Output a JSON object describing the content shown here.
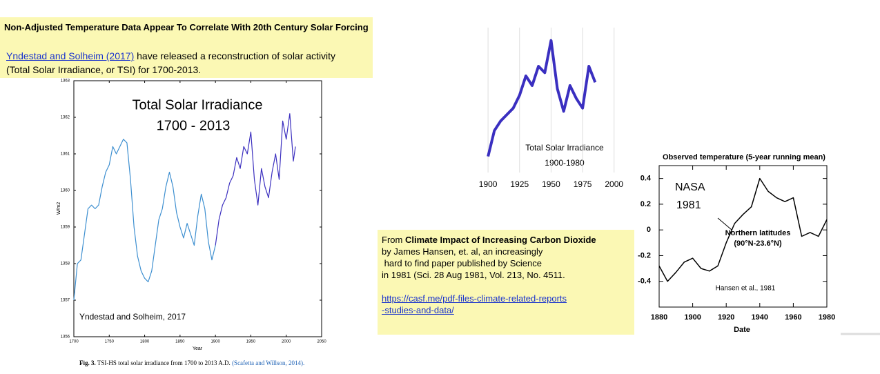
{
  "header": {
    "title": "Non-Adjusted  Temperature Data Appear To Correlate With 20th Century Solar Forcing",
    "link": "Yndestad and Solheim (2017)",
    "text": "have released a reconstruction of solar activity",
    "text2": "(Total Solar Irradiance, or TSI) for 1700-2013."
  },
  "note": {
    "prefix": "From",
    "title": "Climate Impact of Increasing Carbon Dioxide",
    "lines": [
      "by James Hansen, et. al, an increasingly",
      "hard to find paper published by Science",
      "in 1981 (Sci. 28 Aug 1981, Vol. 213, No. 4511."
    ],
    "link_lines": [
      "https://casf.me/pdf-files-climate-related-reports",
      "-studies-and-data/"
    ]
  },
  "chart_data": [
    {
      "type": "line",
      "title": "Total Solar Irradiance",
      "subtitle": "1700 - 2013",
      "annotation": "Yndestad and Solheim, 2017",
      "caption_label": "Fig. 3.",
      "caption": "TSI-HS total solar irradiance from 1700 to 2013 A.D.",
      "caption_source": "(Scafetta and Willson, 2014).",
      "x_label": "Year",
      "y_label": "W/m2",
      "x": [
        1700,
        1705,
        1710,
        1715,
        1720,
        1725,
        1730,
        1735,
        1740,
        1745,
        1750,
        1755,
        1760,
        1765,
        1770,
        1775,
        1780,
        1785,
        1790,
        1795,
        1800,
        1805,
        1810,
        1815,
        1820,
        1825,
        1830,
        1835,
        1840,
        1845,
        1850,
        1855,
        1860,
        1865,
        1870,
        1875,
        1880,
        1885,
        1890,
        1895,
        1900,
        1905,
        1910,
        1915,
        1920,
        1925,
        1930,
        1935,
        1940,
        1945,
        1950,
        1955,
        1960,
        1965,
        1970,
        1975,
        1980,
        1985,
        1990,
        1995,
        2000,
        2005,
        2010,
        2013
      ],
      "series": [
        {
          "color": "#3d8fd0",
          "values": [
            1357.0,
            1358.0,
            1358.1,
            1358.8,
            1359.5,
            1359.6,
            1359.5,
            1359.6,
            1360.1,
            1360.5,
            1360.7,
            1361.2,
            1361.0,
            1361.2,
            1361.4,
            1361.3,
            1360.3,
            1359.0,
            1358.2,
            1357.8,
            1357.6,
            1357.5,
            1357.8,
            1358.5,
            1359.2,
            1359.5,
            1360.1,
            1360.5,
            1360.1,
            1359.4,
            1359.0,
            1358.7,
            1359.1,
            1358.8,
            1358.5,
            1359.3,
            1359.9,
            1359.5,
            1358.6,
            1358.1,
            1358.5,
            null,
            null,
            null,
            null,
            null,
            null,
            null,
            null,
            null,
            null,
            null,
            null,
            null,
            null,
            null,
            null,
            null,
            null,
            null,
            null,
            null,
            null,
            null
          ]
        },
        {
          "color": "#3b2fbf",
          "values": [
            null,
            null,
            null,
            null,
            null,
            null,
            null,
            null,
            null,
            null,
            null,
            null,
            null,
            null,
            null,
            null,
            null,
            null,
            null,
            null,
            null,
            null,
            null,
            null,
            null,
            null,
            null,
            null,
            null,
            null,
            null,
            null,
            null,
            null,
            null,
            null,
            null,
            null,
            null,
            null,
            1358.5,
            1359.2,
            1359.6,
            1359.8,
            1360.2,
            1360.4,
            1360.9,
            1360.6,
            1361.2,
            1361.0,
            1361.6,
            1360.3,
            1359.6,
            1360.6,
            1360.1,
            1359.8,
            1360.5,
            1361.0,
            1360.3,
            1361.9,
            1361.4,
            1362.1,
            1360.8,
            1361.2
          ]
        }
      ],
      "xlim": [
        1700,
        2050
      ],
      "xticks": [
        1700,
        1750,
        1800,
        1850,
        1900,
        1950,
        2000,
        2050
      ],
      "ylim": [
        1356,
        1363
      ],
      "yticks": [
        1356,
        1357,
        1358,
        1359,
        1360,
        1361,
        1362,
        1363
      ]
    },
    {
      "type": "line",
      "title": "Total Solar Irradiance",
      "subtitle": "1900-1980",
      "x": [
        1900,
        1905,
        1910,
        1915,
        1920,
        1925,
        1930,
        1935,
        1940,
        1945,
        1950,
        1955,
        1960,
        1965,
        1970,
        1975,
        1980,
        1985
      ],
      "series": [
        {
          "color": "#3a2fc0",
          "values": [
            1358.5,
            1359.3,
            1359.6,
            1359.8,
            1360.0,
            1360.4,
            1361.0,
            1360.7,
            1361.3,
            1361.1,
            1362.1,
            1360.6,
            1359.9,
            1360.7,
            1360.3,
            1360.0,
            1361.3,
            1360.8
          ]
        }
      ],
      "xlim": [
        1895,
        2010
      ],
      "xticks": [
        1900,
        1925,
        1950,
        1975,
        2000
      ],
      "ylim": [
        1358,
        1362.5
      ],
      "grid": true
    },
    {
      "type": "line",
      "title": "Observed temperature (5-year running mean)",
      "annotations": [
        "NASA",
        "1981",
        "Northern latitudes",
        "(90°N-23.6°N)",
        "Hansen et al., 1981"
      ],
      "x_label": "Date",
      "x": [
        1880,
        1885,
        1890,
        1895,
        1900,
        1905,
        1910,
        1915,
        1920,
        1925,
        1930,
        1935,
        1940,
        1945,
        1950,
        1955,
        1960,
        1965,
        1970,
        1975,
        1980
      ],
      "series": [
        {
          "color": "#000000",
          "values": [
            -0.28,
            -0.4,
            -0.33,
            -0.25,
            -0.22,
            -0.3,
            -0.32,
            -0.28,
            -0.1,
            0.05,
            0.12,
            0.18,
            0.4,
            0.3,
            0.25,
            0.22,
            0.25,
            -0.05,
            -0.02,
            -0.05,
            0.08
          ]
        }
      ],
      "xlim": [
        1880,
        1980
      ],
      "xticks": [
        1880,
        1900,
        1920,
        1940,
        1960,
        1980
      ],
      "ylim": [
        -0.6,
        0.5
      ],
      "yticks": [
        0.4,
        0.2,
        0,
        -0.2,
        -0.4
      ]
    }
  ]
}
